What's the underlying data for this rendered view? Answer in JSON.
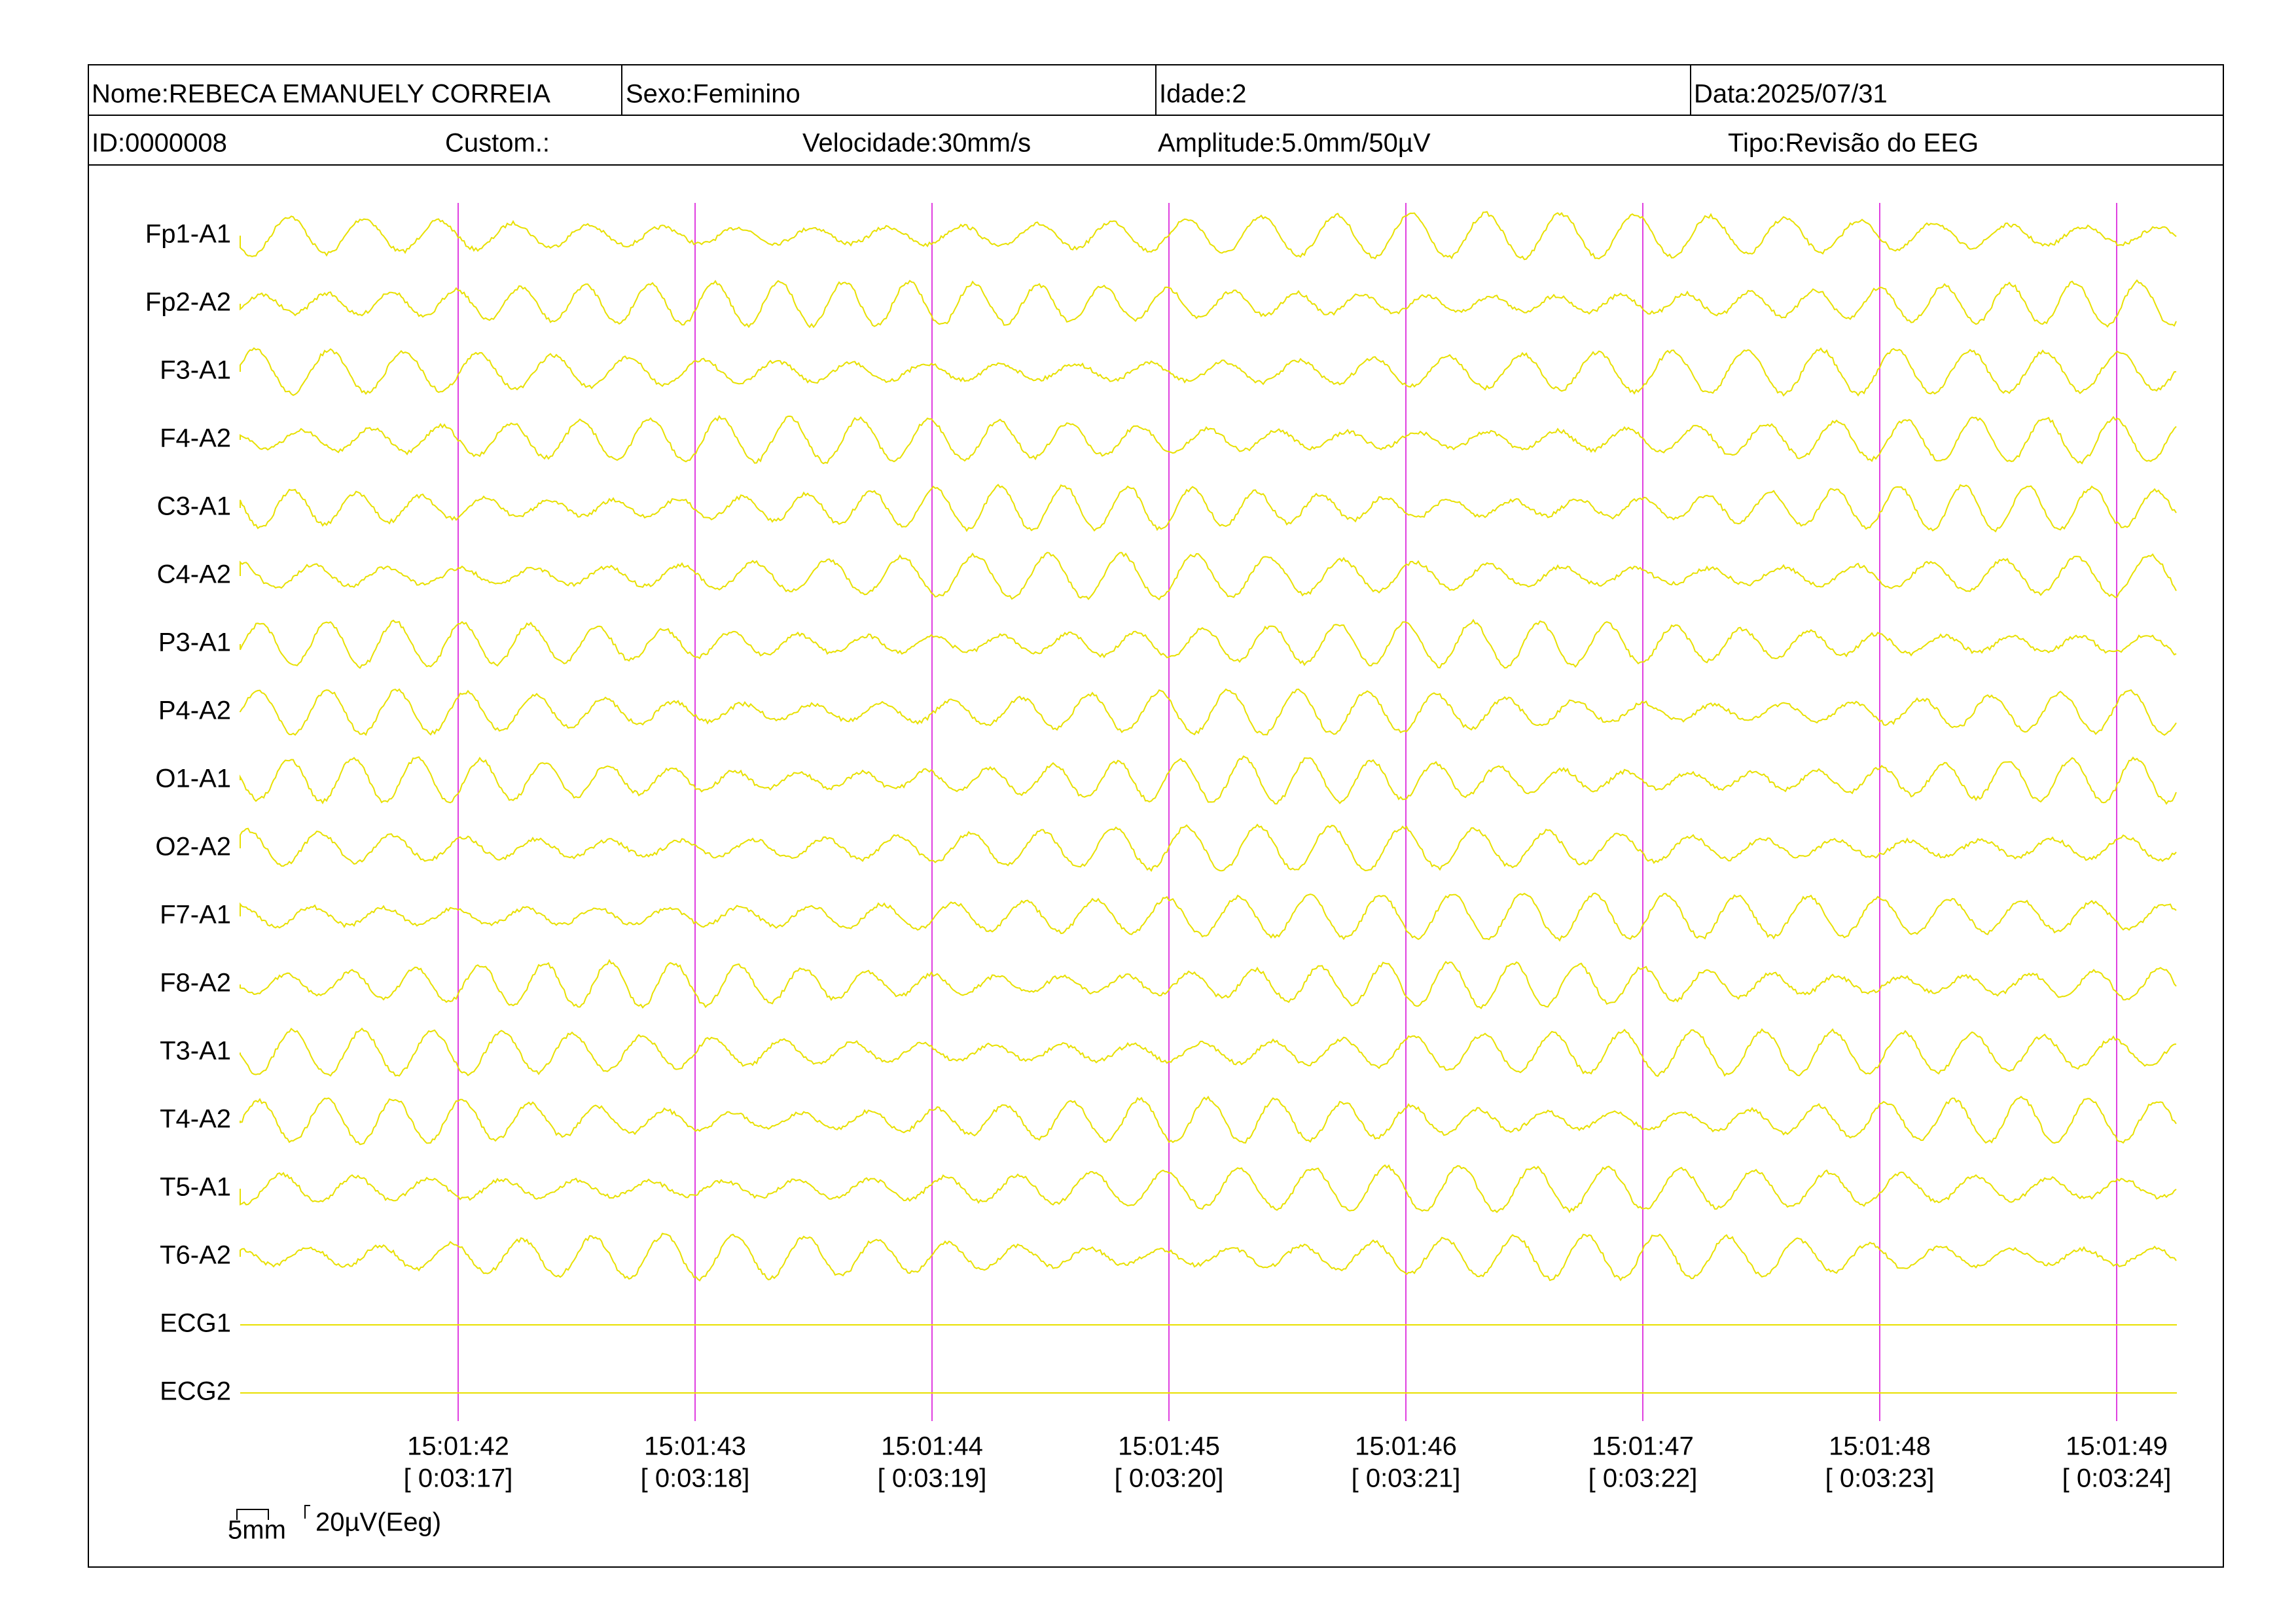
{
  "header": {
    "name": "Nome:REBECA EMANUELY CORREIA",
    "sex": "Sexo:Feminino",
    "age": "Idade:2",
    "date": "Data:2025/07/31",
    "id": "ID:0000008",
    "custom": "Custom.:",
    "speed": "Velocidade:30mm/s",
    "amplitude": "Amplitude:5.0mm/50µV",
    "type": "Tipo:Revisão do EEG"
  },
  "channels": [
    "Fp1-A1",
    "Fp2-A2",
    "F3-A1",
    "F4-A2",
    "C3-A1",
    "C4-A2",
    "P3-A1",
    "P4-A2",
    "O1-A1",
    "O2-A2",
    "F7-A1",
    "F8-A2",
    "T3-A1",
    "T4-A2",
    "T5-A1",
    "T6-A2",
    "ECG1",
    "ECG2"
  ],
  "time_marks": [
    {
      "time": "15:01:42",
      "elapsed": "[ 0:03:17]"
    },
    {
      "time": "15:01:43",
      "elapsed": "[ 0:03:18]"
    },
    {
      "time": "15:01:44",
      "elapsed": "[ 0:03:19]"
    },
    {
      "time": "15:01:45",
      "elapsed": "[ 0:03:20]"
    },
    {
      "time": "15:01:46",
      "elapsed": "[ 0:03:21]"
    },
    {
      "time": "15:01:47",
      "elapsed": "[ 0:03:22]"
    },
    {
      "time": "15:01:48",
      "elapsed": "[ 0:03:23]"
    },
    {
      "time": "15:01:49",
      "elapsed": "[ 0:03:24]"
    }
  ],
  "scale": {
    "time": "5mm",
    "amplitude": "20µV(Eeg)"
  }
}
